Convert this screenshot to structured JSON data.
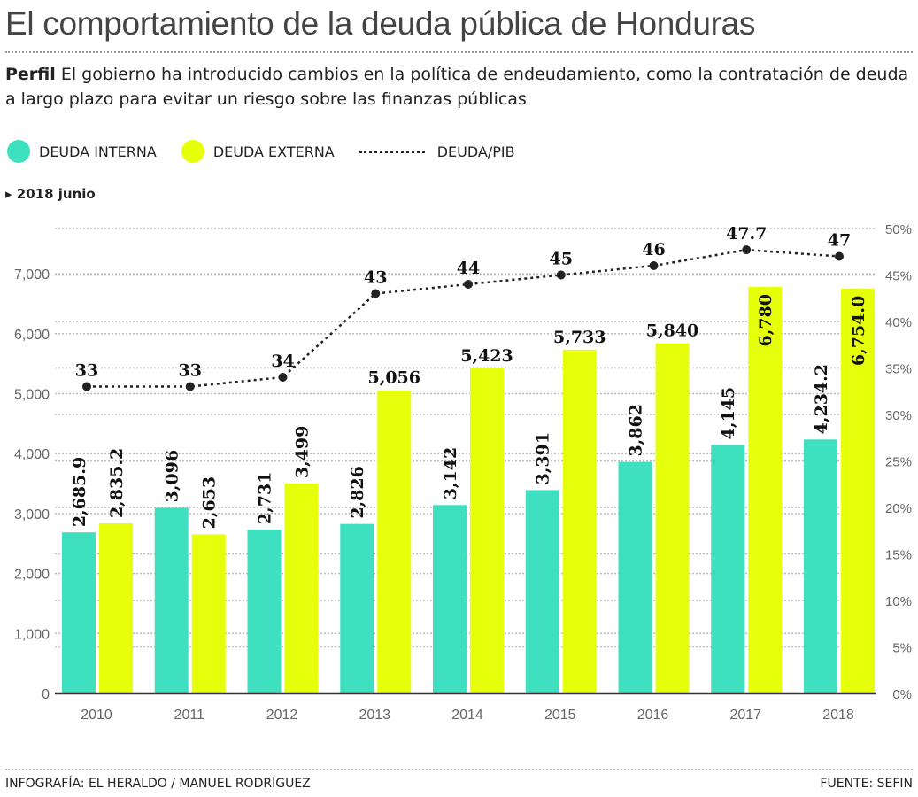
{
  "title": "El comportamiento de la deuda pública de Honduras",
  "subtitle_lead": "Perfil",
  "subtitle": "El gobierno ha introducido cambios en la política de endeudamiento, como la contratación de deuda a largo plazo para evitar un riesgo sobre las finanzas públicas",
  "note": "2018 junio",
  "footer_left": "INFOGRAFÍA: EL HERALDO / MANUEL RODRÍGUEZ",
  "footer_right": "FUENTE: SEFIN",
  "colors": {
    "interna": "#3ee0bf",
    "externa": "#e6ff0a",
    "line": "#222222"
  },
  "chart_data": {
    "type": "bar",
    "categories": [
      "2010",
      "2011",
      "2012",
      "2013",
      "2014",
      "2015",
      "2016",
      "2017",
      "2018"
    ],
    "series": [
      {
        "name": "DEUDA INTERNA",
        "values": [
          2685.9,
          3096,
          2731,
          2826,
          3142,
          3391,
          3862,
          4145,
          4234.2
        ],
        "labels": [
          "2,685.9",
          "3,096",
          "2,731",
          "2,826",
          "3,142",
          "3,391",
          "3,862",
          "4,145",
          "4,234.2"
        ]
      },
      {
        "name": "DEUDA EXTERNA",
        "values": [
          2835.2,
          2653,
          3499,
          5056,
          5423,
          5733,
          5840,
          6780,
          6754.0
        ],
        "labels": [
          "2,835.2",
          "2,653",
          "3,499",
          "5,056",
          "5,423",
          "5,733",
          "5,840",
          "6,780",
          "6,754.0"
        ]
      },
      {
        "name": "DEUDA/PIB",
        "type": "line",
        "axis": "right",
        "values": [
          33,
          33,
          34,
          43,
          44,
          45,
          46,
          47.7,
          47
        ],
        "labels": [
          "33",
          "33",
          "34",
          "43",
          "44",
          "45",
          "46",
          "47.7",
          "47"
        ]
      }
    ],
    "y_left": {
      "ticks": [
        "0",
        "1,000",
        "2,000",
        "3,000",
        "4,000",
        "5,000",
        "6,000",
        "7,000"
      ],
      "range": [
        0,
        7000
      ]
    },
    "y_right": {
      "ticks": [
        "0%",
        "5%",
        "10%",
        "15%",
        "20%",
        "25%",
        "30%",
        "35%",
        "40%",
        "45%",
        "50%"
      ],
      "range": [
        0,
        50
      ]
    },
    "grid": true,
    "legend": "top-left"
  }
}
